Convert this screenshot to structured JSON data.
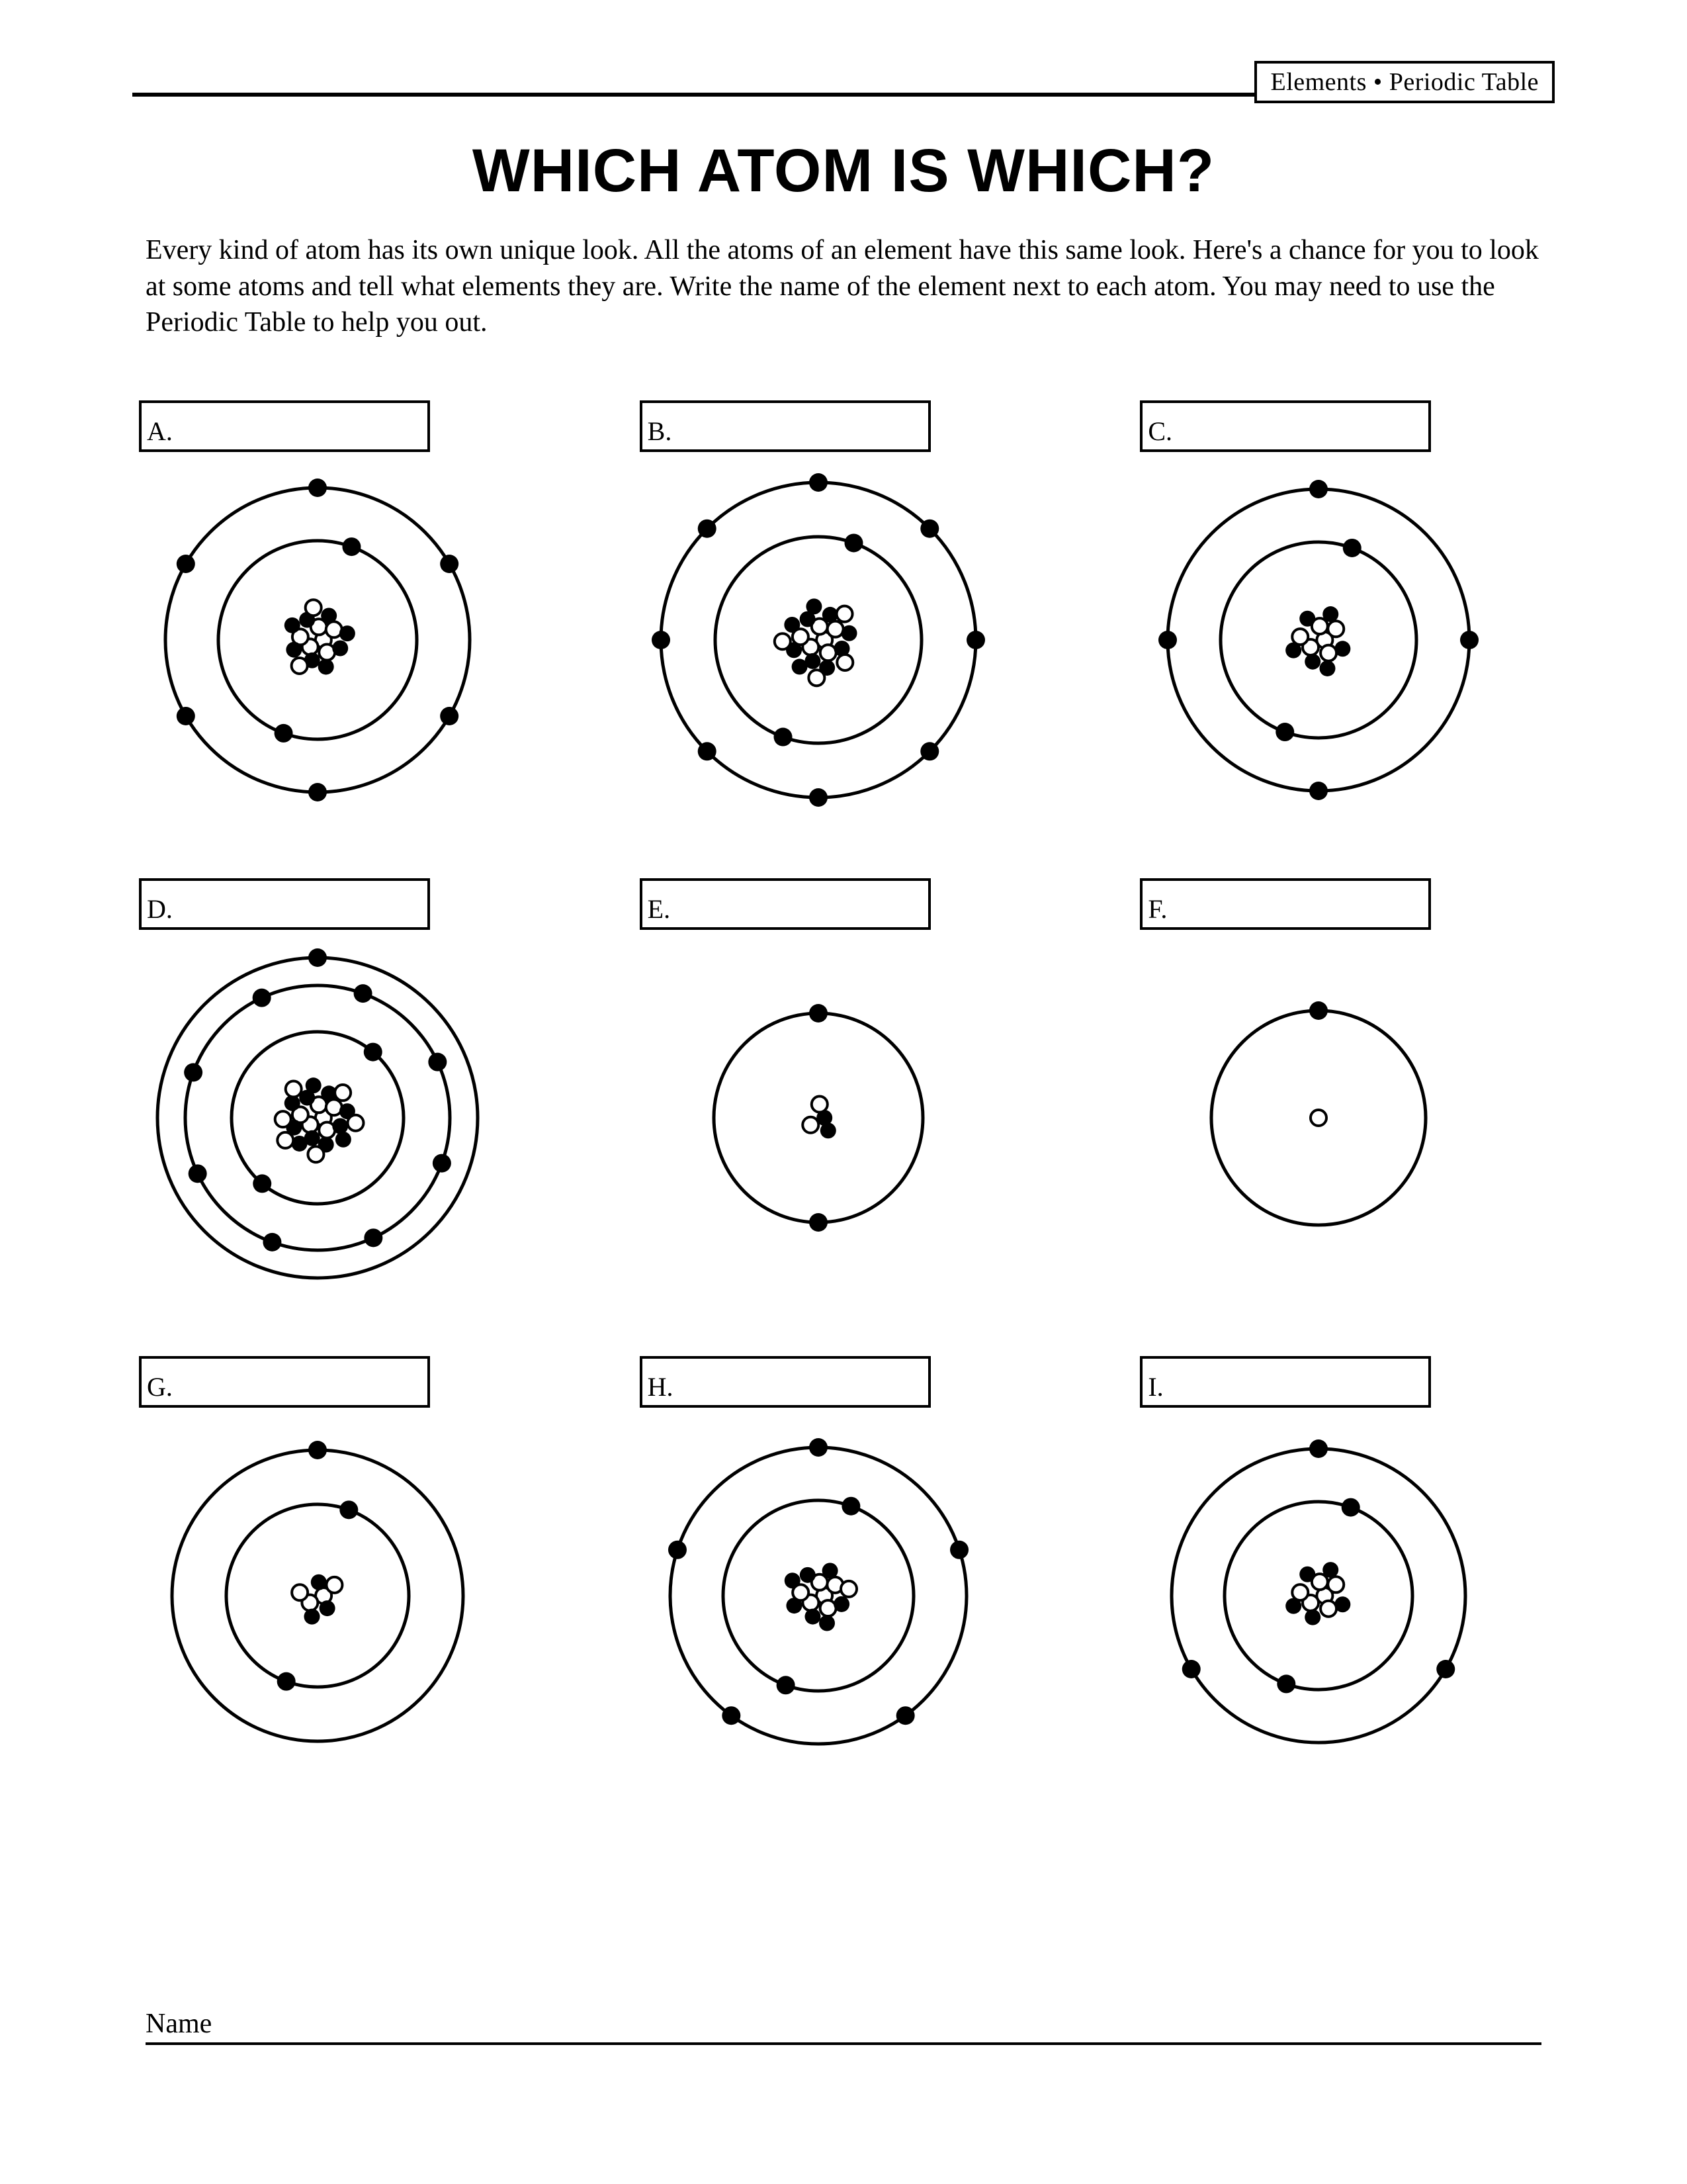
{
  "header": {
    "corner_label": "Elements • Periodic Table",
    "title": "WHICH ATOM IS WHICH?",
    "instructions": "Every kind of atom has its own unique look. All the atoms of an element have this same look. Here's a chance for you to look at some atoms and tell what elements they are. Write the name of the element next to each atom. You may need to use the Periodic Table to help you out."
  },
  "footer": {
    "name_label": "Name"
  },
  "styling": {
    "page_bg": "#ffffff",
    "stroke": "#000000",
    "shell_stroke_width": 5,
    "electron_radius": 14,
    "nucleus_particle_radius": 12,
    "answer_box_border": 4,
    "title_fontsize": 92,
    "body_fontsize": 42,
    "letter_fontsize": 40
  },
  "atoms": [
    {
      "letter": "A.",
      "outer_radius": 240,
      "shells": [
        {
          "r": 230,
          "electrons": 6
        },
        {
          "r": 150,
          "electrons": 2
        }
      ],
      "nucleus": {
        "protons": 8,
        "neutrons": 8,
        "cluster_r": 50
      }
    },
    {
      "letter": "B.",
      "outer_radius": 248,
      "shells": [
        {
          "r": 238,
          "electrons": 8
        },
        {
          "r": 156,
          "electrons": 2
        }
      ],
      "nucleus": {
        "protons": 10,
        "neutrons": 10,
        "cluster_r": 58
      }
    },
    {
      "letter": "C.",
      "outer_radius": 238,
      "shells": [
        {
          "r": 228,
          "electrons": 4
        },
        {
          "r": 148,
          "electrons": 2
        }
      ],
      "nucleus": {
        "protons": 6,
        "neutrons": 6,
        "cluster_r": 46
      }
    },
    {
      "letter": "D.",
      "outer_radius": 252,
      "shells": [
        {
          "r": 242,
          "electrons": 1
        },
        {
          "r": 200,
          "electrons": 8
        },
        {
          "r": 130,
          "electrons": 2
        }
      ],
      "nucleus": {
        "protons": 11,
        "neutrons": 12,
        "cluster_r": 60
      }
    },
    {
      "letter": "E.",
      "outer_radius": 168,
      "shells": [
        {
          "r": 158,
          "electrons": 2
        }
      ],
      "nucleus": {
        "protons": 2,
        "neutrons": 2,
        "cluster_r": 26
      }
    },
    {
      "letter": "F.",
      "outer_radius": 172,
      "shells": [
        {
          "r": 162,
          "electrons": 1
        }
      ],
      "nucleus": {
        "protons": 1,
        "neutrons": 0,
        "cluster_r": 10
      }
    },
    {
      "letter": "G.",
      "outer_radius": 230,
      "shells": [
        {
          "r": 220,
          "electrons": 1
        },
        {
          "r": 138,
          "electrons": 2
        }
      ],
      "nucleus": {
        "protons": 3,
        "neutrons": 4,
        "cluster_r": 34
      }
    },
    {
      "letter": "H.",
      "outer_radius": 234,
      "shells": [
        {
          "r": 224,
          "electrons": 5
        },
        {
          "r": 144,
          "electrons": 2
        }
      ],
      "nucleus": {
        "protons": 7,
        "neutrons": 7,
        "cluster_r": 48
      }
    },
    {
      "letter": "I.",
      "outer_radius": 232,
      "shells": [
        {
          "r": 222,
          "electrons": 3
        },
        {
          "r": 142,
          "electrons": 2
        }
      ],
      "nucleus": {
        "protons": 5,
        "neutrons": 6,
        "cluster_r": 44
      }
    }
  ]
}
